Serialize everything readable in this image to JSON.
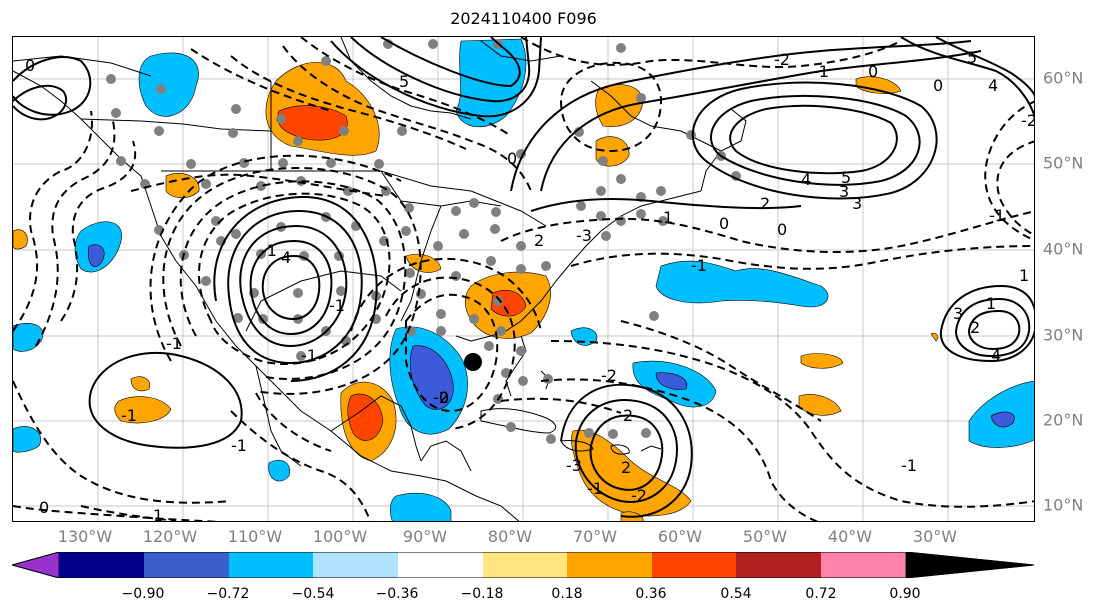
{
  "title": "2024110400 F096",
  "map": {
    "lon_labels": [
      "130°W",
      "120°W",
      "110°W",
      "100°W",
      "90°W",
      "80°W",
      "70°W",
      "60°W",
      "50°W",
      "40°W",
      "30°W"
    ],
    "lat_labels": [
      "60°N",
      "50°N",
      "40°N",
      "30°N",
      "20°N",
      "10°N"
    ],
    "contour_labels": [
      "0",
      "5",
      "4",
      "3",
      "2",
      "0",
      "5",
      "4",
      "3",
      "2",
      "0",
      "1",
      "0",
      "-1",
      "-2",
      "2",
      "0",
      "5",
      "4",
      "0",
      "1",
      "-1",
      "-2",
      "1",
      "2",
      "3",
      "4",
      "-1",
      "0",
      "1",
      "2",
      "-1",
      "0",
      "-2",
      "-1",
      "-3",
      "-1",
      "-1",
      "-1",
      "-1",
      "-2",
      "-1",
      "-3",
      "-2",
      "-1"
    ],
    "fill_colors": {
      "light_blue": "#00bfff",
      "mid_blue": "#3b5bdb",
      "dark_blue": "#1c2fa8",
      "orange": "#ffa500",
      "red_orange": "#ff4500",
      "dark_red": "#c0392b",
      "land_outline": "#000000",
      "dots": "#808080",
      "grid": "#b0b0b0"
    }
  },
  "colorbar": {
    "ticks": [
      "−0.90",
      "−0.72",
      "−0.54",
      "−0.36",
      "−0.18",
      "0.18",
      "0.36",
      "0.54",
      "0.72",
      "0.90"
    ],
    "colors": [
      "#9932cc",
      "#00008b",
      "#3a5fcd",
      "#00bfff",
      "#b0e2ff",
      "#ffffff",
      "#ffe680",
      "#ffa500",
      "#ff4500",
      "#b22222",
      "#ff82ab"
    ]
  }
}
